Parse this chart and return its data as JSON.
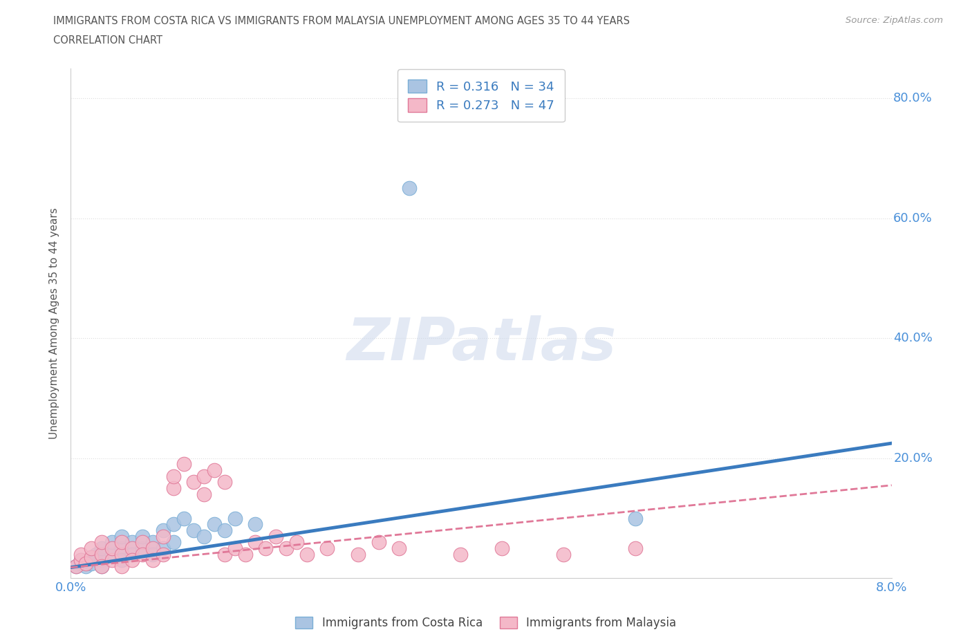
{
  "title_line1": "IMMIGRANTS FROM COSTA RICA VS IMMIGRANTS FROM MALAYSIA UNEMPLOYMENT AMONG AGES 35 TO 44 YEARS",
  "title_line2": "CORRELATION CHART",
  "source_text": "Source: ZipAtlas.com",
  "ylabel": "Unemployment Among Ages 35 to 44 years",
  "watermark": "ZIPatlas",
  "xmin": 0.0,
  "xmax": 0.08,
  "ymin": 0.0,
  "ymax": 0.85,
  "costa_rica_color": "#aac4e2",
  "costa_rica_edge": "#7aaed6",
  "malaysia_color": "#f4b8c8",
  "malaysia_edge": "#e07898",
  "trend_costa_rica_color": "#3a7bbf",
  "trend_malaysia_color": "#e07898",
  "R_costa_rica": 0.316,
  "N_costa_rica": 34,
  "R_malaysia": 0.273,
  "N_malaysia": 47,
  "legend_label_1": "Immigrants from Costa Rica",
  "legend_label_2": "Immigrants from Malaysia",
  "cr_trend_x0": 0.0,
  "cr_trend_y0": 0.018,
  "cr_trend_x1": 0.08,
  "cr_trend_y1": 0.225,
  "my_trend_x0": 0.0,
  "my_trend_y0": 0.018,
  "my_trend_x1": 0.08,
  "my_trend_y1": 0.155,
  "costa_rica_x": [
    0.0005,
    0.001,
    0.001,
    0.0015,
    0.002,
    0.002,
    0.0025,
    0.003,
    0.003,
    0.003,
    0.004,
    0.004,
    0.005,
    0.005,
    0.005,
    0.006,
    0.006,
    0.007,
    0.007,
    0.008,
    0.008,
    0.009,
    0.009,
    0.01,
    0.01,
    0.011,
    0.012,
    0.013,
    0.014,
    0.015,
    0.016,
    0.018,
    0.033,
    0.055
  ],
  "costa_rica_y": [
    0.02,
    0.025,
    0.03,
    0.02,
    0.035,
    0.025,
    0.04,
    0.03,
    0.05,
    0.02,
    0.04,
    0.06,
    0.05,
    0.03,
    0.07,
    0.06,
    0.04,
    0.05,
    0.07,
    0.06,
    0.04,
    0.08,
    0.05,
    0.09,
    0.06,
    0.1,
    0.08,
    0.07,
    0.09,
    0.08,
    0.1,
    0.09,
    0.65,
    0.1
  ],
  "malaysia_x": [
    0.0005,
    0.001,
    0.001,
    0.0015,
    0.002,
    0.002,
    0.003,
    0.003,
    0.003,
    0.004,
    0.004,
    0.005,
    0.005,
    0.005,
    0.006,
    0.006,
    0.007,
    0.007,
    0.008,
    0.008,
    0.009,
    0.009,
    0.01,
    0.01,
    0.011,
    0.012,
    0.013,
    0.013,
    0.014,
    0.015,
    0.015,
    0.016,
    0.017,
    0.018,
    0.019,
    0.02,
    0.021,
    0.022,
    0.023,
    0.025,
    0.028,
    0.03,
    0.032,
    0.038,
    0.042,
    0.048,
    0.055
  ],
  "malaysia_y": [
    0.02,
    0.03,
    0.04,
    0.025,
    0.035,
    0.05,
    0.04,
    0.02,
    0.06,
    0.03,
    0.05,
    0.04,
    0.06,
    0.02,
    0.05,
    0.03,
    0.06,
    0.04,
    0.05,
    0.03,
    0.07,
    0.04,
    0.15,
    0.17,
    0.19,
    0.16,
    0.17,
    0.14,
    0.18,
    0.16,
    0.04,
    0.05,
    0.04,
    0.06,
    0.05,
    0.07,
    0.05,
    0.06,
    0.04,
    0.05,
    0.04,
    0.06,
    0.05,
    0.04,
    0.05,
    0.04,
    0.05
  ],
  "ytick_positions": [
    0.2,
    0.4,
    0.6,
    0.8
  ],
  "ytick_labels": [
    "20.0%",
    "40.0%",
    "60.0%",
    "80.0%"
  ],
  "xtick_positions": [
    0.0,
    0.08
  ],
  "xtick_labels": [
    "0.0%",
    "8.0%"
  ],
  "grid_color": "#dddddd",
  "title_color": "#555555",
  "tick_color": "#4a90d9",
  "source_color": "#999999"
}
